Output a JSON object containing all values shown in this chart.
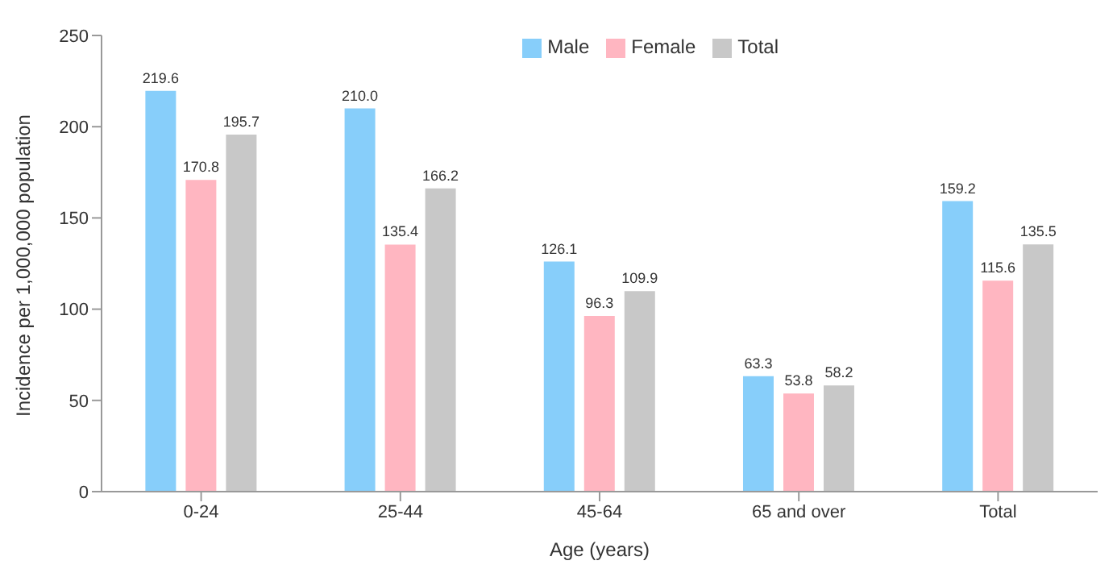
{
  "chart_data": {
    "type": "bar",
    "xlabel": "Age (years)",
    "ylabel": "Incidence per 1,000,000 population",
    "categories": [
      "0-24",
      "25-44",
      "45-64",
      "65 and over",
      "Total"
    ],
    "series": [
      {
        "name": "Male",
        "color": "#87cefa",
        "values": [
          219.6,
          210.0,
          126.1,
          63.3,
          159.2
        ],
        "value_labels": [
          "219.6",
          "210.0",
          "126.1",
          "63.3",
          "159.2"
        ]
      },
      {
        "name": "Female",
        "color": "#ffb6c1",
        "values": [
          170.8,
          135.4,
          96.3,
          53.8,
          115.6
        ],
        "value_labels": [
          "170.8",
          "135.4",
          "96.3",
          "53.8",
          "115.6"
        ]
      },
      {
        "name": "Total",
        "color": "#c8c8c8",
        "values": [
          195.7,
          166.2,
          109.9,
          58.2,
          135.5
        ],
        "value_labels": [
          "195.7",
          "166.2",
          "109.9",
          "58.2",
          "135.5"
        ]
      }
    ],
    "ylim": [
      0,
      250
    ],
    "yticks": [
      0,
      50,
      100,
      150,
      200,
      250
    ],
    "legend": "top right"
  }
}
